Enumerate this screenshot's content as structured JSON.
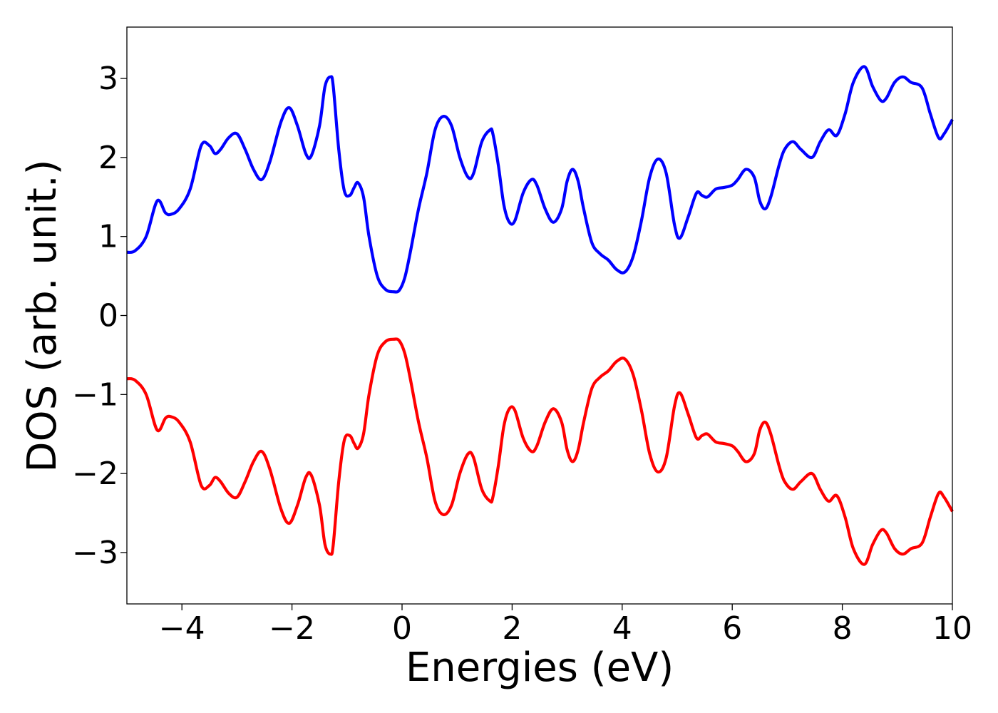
{
  "chart_data": {
    "type": "line",
    "title": "",
    "xlabel": "Energies (eV)",
    "ylabel": "DOS (arb. unit.)",
    "xlim": [
      -5,
      10
    ],
    "ylim": [
      -3.65,
      3.65
    ],
    "xticks": [
      -4,
      -2,
      0,
      2,
      4,
      6,
      8,
      10
    ],
    "xtick_labels": [
      "−4",
      "−2",
      "0",
      "2",
      "4",
      "6",
      "8",
      "10"
    ],
    "yticks": [
      -3,
      -2,
      -1,
      0,
      1,
      2,
      3
    ],
    "ytick_labels": [
      "−3",
      "−2",
      "−1",
      "0",
      "1",
      "2",
      "3"
    ],
    "grid": false,
    "legend": "none",
    "series": [
      {
        "color": "#0000ff",
        "x": [
          -5.0,
          -4.85,
          -4.65,
          -4.45,
          -4.3,
          -4.2,
          -4.05,
          -3.85,
          -3.65,
          -3.5,
          -3.4,
          -3.3,
          -3.15,
          -3.0,
          -2.85,
          -2.7,
          -2.55,
          -2.4,
          -2.2,
          -2.05,
          -1.9,
          -1.75,
          -1.65,
          -1.5,
          -1.4,
          -1.3,
          -1.25,
          -1.15,
          -1.05,
          -0.95,
          -0.87,
          -0.8,
          -0.7,
          -0.6,
          -0.45,
          -0.3,
          -0.15,
          -0.05,
          0.05,
          0.15,
          0.3,
          0.45,
          0.6,
          0.75,
          0.9,
          1.05,
          1.2,
          1.3,
          1.45,
          1.6,
          1.65,
          1.75,
          1.85,
          1.95,
          2.05,
          2.2,
          2.35,
          2.45,
          2.6,
          2.75,
          2.9,
          3.0,
          3.1,
          3.2,
          3.3,
          3.45,
          3.6,
          3.75,
          3.9,
          4.05,
          4.2,
          4.35,
          4.5,
          4.65,
          4.8,
          4.95,
          5.05,
          5.2,
          5.35,
          5.45,
          5.55,
          5.7,
          5.85,
          6.0,
          6.1,
          6.25,
          6.4,
          6.5,
          6.6,
          6.7,
          6.85,
          6.95,
          7.1,
          7.25,
          7.45,
          7.6,
          7.75,
          7.9,
          8.05,
          8.2,
          8.4,
          8.55,
          8.7,
          8.8,
          8.95,
          9.1,
          9.25,
          9.45,
          9.6,
          9.75,
          9.85,
          10.0
        ],
        "y": [
          0.8,
          0.82,
          1.0,
          1.45,
          1.3,
          1.28,
          1.35,
          1.6,
          2.15,
          2.15,
          2.05,
          2.1,
          2.25,
          2.3,
          2.1,
          1.85,
          1.72,
          1.95,
          2.45,
          2.63,
          2.4,
          2.05,
          2.02,
          2.4,
          2.9,
          3.02,
          2.9,
          2.1,
          1.58,
          1.52,
          1.62,
          1.68,
          1.5,
          1.0,
          0.5,
          0.33,
          0.3,
          0.32,
          0.48,
          0.8,
          1.35,
          1.8,
          2.35,
          2.52,
          2.4,
          2.0,
          1.75,
          1.8,
          2.2,
          2.35,
          2.3,
          1.9,
          1.4,
          1.18,
          1.2,
          1.55,
          1.72,
          1.65,
          1.35,
          1.18,
          1.35,
          1.7,
          1.85,
          1.7,
          1.35,
          0.92,
          0.78,
          0.7,
          0.58,
          0.55,
          0.75,
          1.2,
          1.75,
          1.98,
          1.8,
          1.15,
          0.98,
          1.25,
          1.55,
          1.52,
          1.5,
          1.6,
          1.62,
          1.65,
          1.72,
          1.85,
          1.75,
          1.45,
          1.35,
          1.5,
          1.9,
          2.1,
          2.2,
          2.1,
          2.0,
          2.2,
          2.35,
          2.28,
          2.55,
          2.95,
          3.15,
          2.9,
          2.72,
          2.75,
          2.95,
          3.02,
          2.95,
          2.88,
          2.55,
          2.25,
          2.3,
          2.48
        ]
      },
      {
        "color": "#ff0000",
        "x": [
          -5.0,
          -4.85,
          -4.65,
          -4.45,
          -4.3,
          -4.2,
          -4.05,
          -3.85,
          -3.65,
          -3.5,
          -3.4,
          -3.3,
          -3.15,
          -3.0,
          -2.85,
          -2.7,
          -2.55,
          -2.4,
          -2.2,
          -2.05,
          -1.9,
          -1.75,
          -1.65,
          -1.5,
          -1.4,
          -1.3,
          -1.25,
          -1.15,
          -1.05,
          -0.95,
          -0.87,
          -0.8,
          -0.7,
          -0.6,
          -0.45,
          -0.3,
          -0.15,
          -0.05,
          0.05,
          0.15,
          0.3,
          0.45,
          0.6,
          0.75,
          0.9,
          1.05,
          1.2,
          1.3,
          1.45,
          1.6,
          1.65,
          1.75,
          1.85,
          1.95,
          2.05,
          2.2,
          2.35,
          2.45,
          2.6,
          2.75,
          2.9,
          3.0,
          3.1,
          3.2,
          3.3,
          3.45,
          3.6,
          3.75,
          3.9,
          4.05,
          4.2,
          4.35,
          4.5,
          4.65,
          4.8,
          4.95,
          5.05,
          5.2,
          5.35,
          5.45,
          5.55,
          5.7,
          5.85,
          6.0,
          6.1,
          6.25,
          6.4,
          6.5,
          6.6,
          6.7,
          6.85,
          6.95,
          7.1,
          7.25,
          7.45,
          7.6,
          7.75,
          7.9,
          8.05,
          8.2,
          8.4,
          8.55,
          8.7,
          8.8,
          8.95,
          9.1,
          9.25,
          9.45,
          9.6,
          9.75,
          9.85,
          10.0
        ],
        "y": [
          -0.8,
          -0.82,
          -1.0,
          -1.45,
          -1.3,
          -1.28,
          -1.35,
          -1.6,
          -2.15,
          -2.15,
          -2.05,
          -2.1,
          -2.25,
          -2.3,
          -2.1,
          -1.85,
          -1.72,
          -1.95,
          -2.45,
          -2.63,
          -2.4,
          -2.05,
          -2.02,
          -2.4,
          -2.9,
          -3.02,
          -2.9,
          -2.1,
          -1.58,
          -1.52,
          -1.62,
          -1.68,
          -1.5,
          -1.0,
          -0.5,
          -0.33,
          -0.3,
          -0.32,
          -0.48,
          -0.8,
          -1.35,
          -1.8,
          -2.35,
          -2.52,
          -2.4,
          -2.0,
          -1.75,
          -1.8,
          -2.2,
          -2.35,
          -2.3,
          -1.9,
          -1.4,
          -1.18,
          -1.2,
          -1.55,
          -1.72,
          -1.65,
          -1.35,
          -1.18,
          -1.35,
          -1.7,
          -1.85,
          -1.7,
          -1.35,
          -0.92,
          -0.78,
          -0.7,
          -0.58,
          -0.55,
          -0.75,
          -1.2,
          -1.75,
          -1.98,
          -1.8,
          -1.15,
          -0.98,
          -1.25,
          -1.55,
          -1.52,
          -1.5,
          -1.6,
          -1.62,
          -1.65,
          -1.72,
          -1.85,
          -1.75,
          -1.45,
          -1.35,
          -1.5,
          -1.9,
          -2.1,
          -2.2,
          -2.1,
          -2.0,
          -2.2,
          -2.35,
          -2.28,
          -2.55,
          -2.95,
          -3.15,
          -2.9,
          -2.72,
          -2.75,
          -2.95,
          -3.02,
          -2.95,
          -2.88,
          -2.55,
          -2.25,
          -2.3,
          -2.48
        ]
      }
    ]
  }
}
